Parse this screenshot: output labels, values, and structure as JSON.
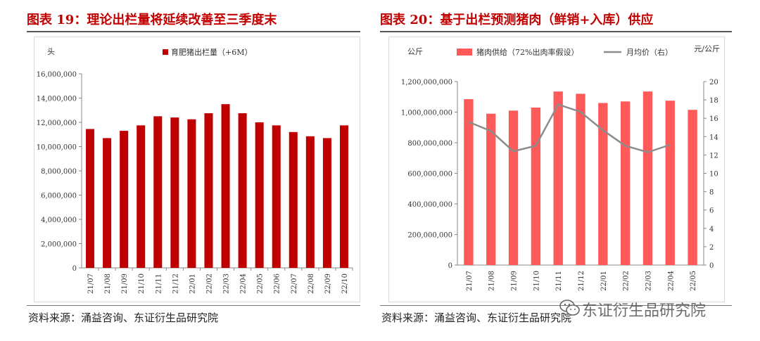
{
  "left": {
    "title": "图表 19：理论出栏量将延续改善至三季度末",
    "source": "资料来源：涌益咨询、东证衍生品研究院"
  },
  "right": {
    "title": "图表 20：基于出栏预测猪肉（鲜销+入库）供应",
    "source": "资料来源：涌益咨询、东证衍生品研究院"
  },
  "watermark": "东证衍生品研究院",
  "chart_data": [
    {
      "type": "bar",
      "title": "",
      "ylabel": "头",
      "ylim": [
        0,
        16000000
      ],
      "yticks": [
        "0",
        "2,000,000",
        "4,000,000",
        "6,000,000",
        "8,000,000",
        "10,000,000",
        "12,000,000",
        "14,000,000",
        "16,000,000"
      ],
      "categories": [
        "21/07",
        "21/08",
        "21/09",
        "21/10",
        "21/11",
        "21/12",
        "22/01",
        "22/02",
        "22/03",
        "22/04",
        "22/05",
        "22/06",
        "22/07",
        "22/08",
        "22/09",
        "22/10"
      ],
      "series": [
        {
          "name": "育肥猪出栏量（+6M）",
          "color": "#c00000",
          "values": [
            11450000,
            10700000,
            11300000,
            11750000,
            12500000,
            12400000,
            12250000,
            12750000,
            13500000,
            12750000,
            12000000,
            11750000,
            11200000,
            10850000,
            10700000,
            11750000
          ]
        }
      ],
      "grid": false,
      "legend": "top"
    },
    {
      "type": "bar",
      "title": "",
      "ylabel": "公斤",
      "y2label": "元/公斤",
      "ylim": [
        0,
        1200000000
      ],
      "y2lim": [
        0,
        20
      ],
      "yticks": [
        "0",
        "200,000,000",
        "400,000,000",
        "600,000,000",
        "800,000,000",
        "1,000,000,000",
        "1,200,000,000"
      ],
      "y2ticks": [
        "0",
        "2",
        "4",
        "6",
        "8",
        "10",
        "12",
        "14",
        "16",
        "18",
        "20"
      ],
      "categories": [
        "21/07",
        "21/08",
        "21/09",
        "21/10",
        "21/11",
        "21/12",
        "22/01",
        "22/02",
        "22/03",
        "22/04",
        "22/05"
      ],
      "series": [
        {
          "name": "猪肉供给（72%出肉率假设）",
          "type": "bar",
          "axis": "left",
          "color": "#ff5a5a",
          "values": [
            1085000000,
            990000000,
            1010000000,
            1030000000,
            1135000000,
            1120000000,
            1060000000,
            1070000000,
            1135000000,
            1075000000,
            1015000000
          ]
        },
        {
          "name": "月均价（右）",
          "type": "line",
          "axis": "right",
          "color": "#8c8c8c",
          "values": [
            15.6,
            14.6,
            12.4,
            13.0,
            17.5,
            16.7,
            14.7,
            13.0,
            12.3,
            13.1,
            null
          ]
        }
      ],
      "grid": false,
      "legend": "top"
    }
  ]
}
